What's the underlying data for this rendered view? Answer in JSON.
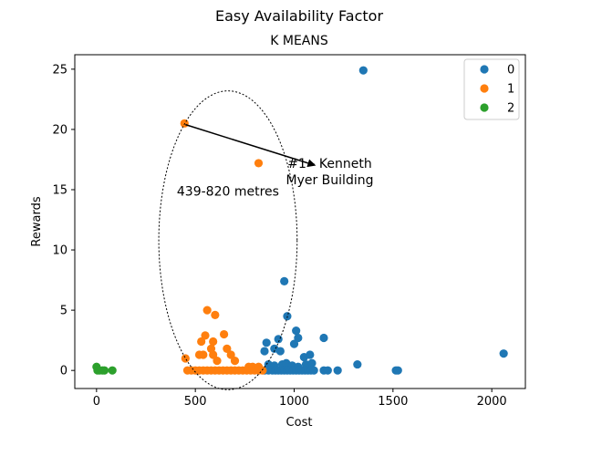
{
  "chart_data": {
    "type": "scatter",
    "title": "Easy Availability Factor",
    "subtitle": "K MEANS",
    "xlabel": "Cost",
    "ylabel": "Rewards",
    "xlim": [
      -110,
      2170
    ],
    "ylim": [
      -1.5,
      26.2
    ],
    "xticks": [
      0,
      500,
      1000,
      1500,
      2000
    ],
    "yticks": [
      0,
      5,
      10,
      15,
      20,
      25
    ],
    "grid": false,
    "legend_position": "top-right",
    "series": [
      {
        "name": "0",
        "color": "#1f77b4",
        "points": [
          [
            1350,
            24.9
          ],
          [
            950,
            7.4
          ],
          [
            965,
            4.5
          ],
          [
            1010,
            3.3
          ],
          [
            1150,
            2.7
          ],
          [
            920,
            2.6
          ],
          [
            1020,
            2.7
          ],
          [
            860,
            2.3
          ],
          [
            1000,
            2.2
          ],
          [
            900,
            1.8
          ],
          [
            930,
            1.6
          ],
          [
            850,
            1.6
          ],
          [
            1050,
            1.1
          ],
          [
            1080,
            1.3
          ],
          [
            2060,
            1.4
          ],
          [
            1320,
            0.5
          ],
          [
            870,
            0.5
          ],
          [
            900,
            0.4
          ],
          [
            940,
            0.5
          ],
          [
            960,
            0.6
          ],
          [
            990,
            0.4
          ],
          [
            1020,
            0.3
          ],
          [
            1060,
            0.5
          ],
          [
            1090,
            0.6
          ],
          [
            850,
            0.0
          ],
          [
            870,
            0.0
          ],
          [
            890,
            0.0
          ],
          [
            905,
            0.0
          ],
          [
            920,
            0.0
          ],
          [
            935,
            0.0
          ],
          [
            950,
            0.0
          ],
          [
            965,
            0.0
          ],
          [
            980,
            0.0
          ],
          [
            995,
            0.0
          ],
          [
            1010,
            0.0
          ],
          [
            1025,
            0.0
          ],
          [
            1040,
            0.0
          ],
          [
            1055,
            0.0
          ],
          [
            1070,
            0.0
          ],
          [
            1085,
            0.0
          ],
          [
            1100,
            0.0
          ],
          [
            1150,
            0.0
          ],
          [
            1170,
            0.0
          ],
          [
            1220,
            0.0
          ],
          [
            1515,
            0.0
          ],
          [
            1525,
            0.0
          ]
        ]
      },
      {
        "name": "1",
        "color": "#ff7f0e",
        "points": [
          [
            445,
            20.5
          ],
          [
            820,
            17.2
          ],
          [
            560,
            5.0
          ],
          [
            600,
            4.6
          ],
          [
            645,
            3.0
          ],
          [
            550,
            2.9
          ],
          [
            530,
            2.4
          ],
          [
            590,
            2.4
          ],
          [
            580,
            1.8
          ],
          [
            660,
            1.8
          ],
          [
            520,
            1.3
          ],
          [
            540,
            1.3
          ],
          [
            590,
            1.3
          ],
          [
            680,
            1.3
          ],
          [
            450,
            1.0
          ],
          [
            610,
            0.8
          ],
          [
            700,
            0.8
          ],
          [
            770,
            0.3
          ],
          [
            790,
            0.3
          ],
          [
            820,
            0.3
          ],
          [
            460,
            0.0
          ],
          [
            480,
            0.0
          ],
          [
            500,
            0.0
          ],
          [
            520,
            0.0
          ],
          [
            540,
            0.0
          ],
          [
            560,
            0.0
          ],
          [
            580,
            0.0
          ],
          [
            600,
            0.0
          ],
          [
            620,
            0.0
          ],
          [
            640,
            0.0
          ],
          [
            660,
            0.0
          ],
          [
            680,
            0.0
          ],
          [
            700,
            0.0
          ],
          [
            720,
            0.0
          ],
          [
            740,
            0.0
          ],
          [
            760,
            0.0
          ],
          [
            780,
            0.0
          ],
          [
            800,
            0.0
          ],
          [
            820,
            0.0
          ],
          [
            840,
            0.0
          ]
        ]
      },
      {
        "name": "2",
        "color": "#2ca02c",
        "points": [
          [
            0,
            0.3
          ],
          [
            5,
            0.0
          ],
          [
            15,
            0.0
          ],
          [
            30,
            0.0
          ],
          [
            40,
            0.0
          ],
          [
            80,
            0.0
          ]
        ]
      }
    ],
    "annotations": [
      {
        "text_lines": [
          "#1 - Kenneth",
          "Myer Building"
        ],
        "arrow_from": [
          450,
          20.4
        ],
        "arrow_to": [
          1110,
          17.0
        ],
        "text_at": [
          1180,
          16.8
        ]
      },
      {
        "text_lines": [
          "439-820 metres"
        ],
        "text_at": [
          665,
          14.5
        ]
      }
    ],
    "ellipse": {
      "center": [
        665,
        10.8
      ],
      "rx": 350,
      "ry": 12.4
    }
  }
}
